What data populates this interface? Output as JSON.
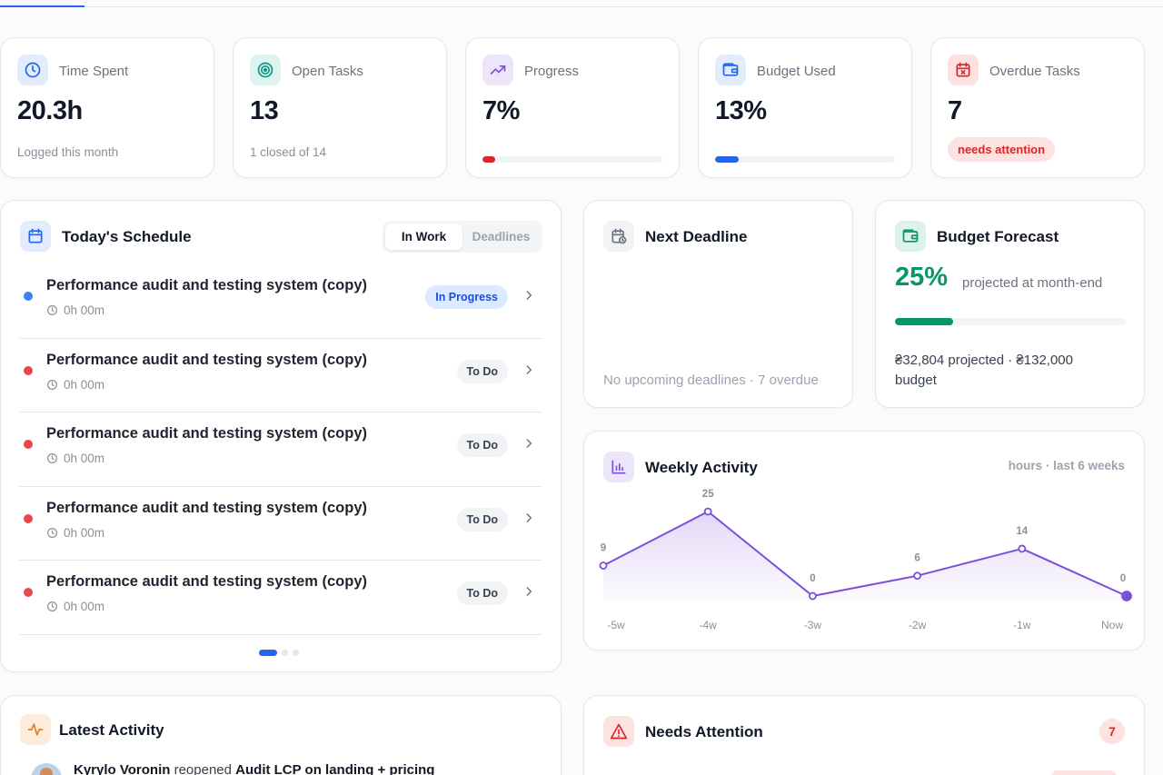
{
  "stats": [
    {
      "label": "Time Spent",
      "value": "20.3h",
      "sub": "Logged this month",
      "icon": "clock-icon",
      "color": "#2563eb"
    },
    {
      "label": "Open Tasks",
      "value": "13",
      "sub": "1 closed of 14",
      "icon": "target-icon",
      "color": "#0d9488"
    },
    {
      "label": "Progress",
      "value": "7%",
      "progress": 0.07,
      "icon": "trending-up-icon",
      "color": "#dc2626"
    },
    {
      "label": "Budget Used",
      "value": "13%",
      "progress": 0.13,
      "icon": "wallet-icon",
      "color": "#2563eb"
    },
    {
      "label": "Overdue Tasks",
      "value": "7",
      "badge": "needs attention",
      "icon": "calendar-x-icon",
      "color": "#dc2626"
    }
  ],
  "schedule": {
    "title": "Today's Schedule",
    "tabs": [
      "In Work",
      "Deadlines"
    ],
    "active_tab": "In Work",
    "items": [
      {
        "title": "Performance audit and testing system (copy)",
        "time": "0h 00m",
        "status": "In Progress",
        "dot": "#3b82f6"
      },
      {
        "title": "Performance audit and testing system (copy)",
        "time": "0h 00m",
        "status": "To Do",
        "dot": "#e5484d"
      },
      {
        "title": "Performance audit and testing system (copy)",
        "time": "0h 00m",
        "status": "To Do",
        "dot": "#e5484d"
      },
      {
        "title": "Performance audit and testing system (copy)",
        "time": "0h 00m",
        "status": "To Do",
        "dot": "#e5484d"
      },
      {
        "title": "Performance audit and testing system (copy)",
        "time": "0h 00m",
        "status": "To Do",
        "dot": "#e5484d"
      }
    ],
    "page": 1,
    "pages": 3
  },
  "deadline": {
    "title": "Next Deadline",
    "empty_text": "No upcoming deadlines · 7 overdue"
  },
  "forecast": {
    "title": "Budget Forecast",
    "percent": "25%",
    "percent_value": 0.25,
    "note": "projected at month-end",
    "description": "₴32,804 projected · ₴132,000 budget"
  },
  "weekly": {
    "title": "Weekly Activity",
    "range": "hours · last 6 weeks",
    "chart_data": {
      "type": "area",
      "categories": [
        "-5w",
        "-4w",
        "-3w",
        "-2w",
        "-1w",
        "Now"
      ],
      "values": [
        9,
        25,
        0,
        6,
        14,
        0
      ],
      "ylim": [
        0,
        25
      ],
      "grid": false,
      "line_color": "#7c4fd9"
    }
  },
  "latest": {
    "title": "Latest Activity",
    "entry": {
      "user": "Kyrylo Voronin",
      "action": "reopened",
      "target": "Audit LCP on landing + pricing"
    }
  },
  "attention": {
    "title": "Needs Attention",
    "count": "7"
  }
}
